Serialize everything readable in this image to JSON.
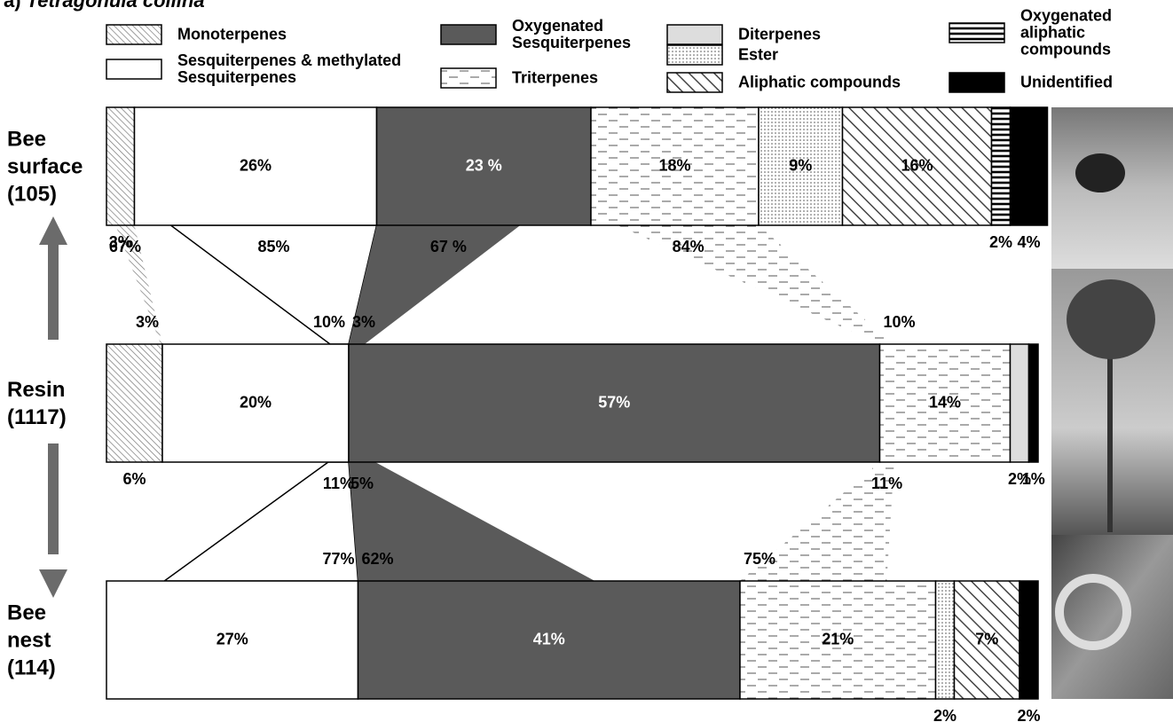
{
  "chart_data": {
    "type": "bar",
    "orientation": "horizontal",
    "stacked": true,
    "panel_label": "a)",
    "title": "Tetragonula collina",
    "categories": [
      "Bee surface (105)",
      "Resin (1117)",
      "Bee nest (114)"
    ],
    "series": [
      {
        "name": "Monoterpenes",
        "color": "#777777",
        "pattern": "fine-diagonal",
        "values": [
          3,
          6,
          null
        ],
        "value_labels": [
          "3%",
          "6%",
          null
        ],
        "links": [
          {
            "upper": {
              "value": 67,
              "label": "67%"
            },
            "lower": {
              "value": 3,
              "label": "3%"
            }
          },
          null
        ]
      },
      {
        "name": "Sesquiterpenes & methylated Sesquiterpenes",
        "color": "#ffffff",
        "pattern": "solid",
        "values": [
          26,
          20,
          27
        ],
        "value_labels": [
          "26%",
          "20%",
          "27%"
        ],
        "links": [
          {
            "upper": {
              "value": 85,
              "label": "85%"
            },
            "lower": {
              "value": 10,
              "label": "10%"
            }
          },
          {
            "upper": {
              "value": 11,
              "label": "11%"
            },
            "lower": {
              "value": 77,
              "label": "77%"
            }
          }
        ]
      },
      {
        "name": "Oxygenated Sesquiterpenes",
        "color": "#5a5a5a",
        "pattern": "solid",
        "values": [
          23,
          57,
          41
        ],
        "value_labels": [
          "23 %",
          "57%",
          "41%"
        ],
        "links": [
          {
            "upper": {
              "value": 67,
              "label": "67 %"
            },
            "lower": {
              "value": 3,
              "label": "3%"
            }
          },
          {
            "upper": {
              "value": 5,
              "label": "5%"
            },
            "lower": {
              "value": 62,
              "label": "62%"
            }
          }
        ]
      },
      {
        "name": "Triterpenes",
        "color": "#555555",
        "pattern": "dashes",
        "values": [
          18,
          14,
          21
        ],
        "value_labels": [
          "18%",
          "14%",
          "21%"
        ],
        "links": [
          {
            "upper": {
              "value": 84,
              "label": "84%"
            },
            "lower": {
              "value": 10,
              "label": "10%"
            }
          },
          {
            "upper": {
              "value": 11,
              "label": "11%"
            },
            "lower": {
              "value": 75,
              "label": "75%"
            }
          }
        ]
      },
      {
        "name": "Diterpenes",
        "color": "#dddddd",
        "pattern": "solid",
        "values": [
          null,
          2,
          null
        ],
        "value_labels": [
          null,
          "2%",
          null
        ]
      },
      {
        "name": "Ester",
        "color": "#555555",
        "pattern": "dots",
        "values": [
          9,
          null,
          2
        ],
        "value_labels": [
          "9%",
          null,
          "2%"
        ]
      },
      {
        "name": "Aliphatic compounds",
        "color": "#444444",
        "pattern": "wide-diagonal",
        "values": [
          16,
          null,
          7
        ],
        "value_labels": [
          "16%",
          null,
          "7%"
        ]
      },
      {
        "name": "Oxygenated aliphatic compounds",
        "color": "#000000",
        "pattern": "horizontal-lines",
        "values": [
          2,
          null,
          null
        ],
        "value_labels": [
          "2%",
          null,
          null
        ]
      },
      {
        "name": "Unidentified",
        "color": "#000000",
        "pattern": "solid",
        "values": [
          4,
          1,
          2
        ],
        "value_labels": [
          "4%",
          "1%",
          "2%"
        ]
      }
    ]
  }
}
